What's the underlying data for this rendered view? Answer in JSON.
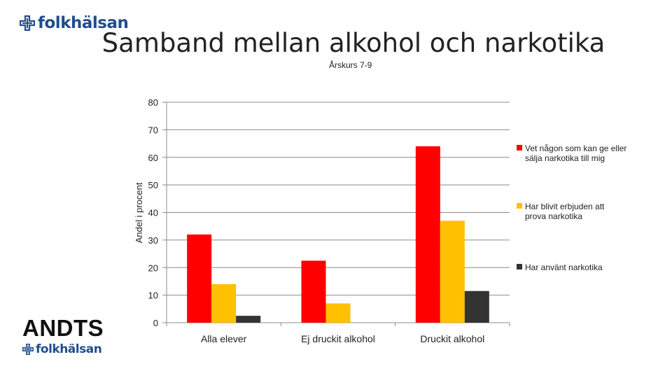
{
  "header": {
    "logo_text": "folkhälsan",
    "logo_icon": "folkhalsan-cross-icon"
  },
  "footer": {
    "andts_text": "ANDTS",
    "logo_text": "folkhälsan"
  },
  "brand_color": "#1f4e8c",
  "chart_data": {
    "type": "bar",
    "title": "Samband mellan alkohol och narkotika",
    "subtitle": "Årskurs 7-9",
    "ylabel": "Andel i procent",
    "xlabel": "",
    "ylim": [
      0,
      80
    ],
    "yticks": [
      0,
      10,
      20,
      30,
      40,
      50,
      60,
      70,
      80
    ],
    "grid": true,
    "legend_position": "right",
    "categories": [
      "Alla elever",
      "Ej druckit alkohol",
      "Druckit alkohol"
    ],
    "series": [
      {
        "name": "Vet någon som kan ge eller sälja narkotika till mig",
        "color": "#ff0000",
        "values": [
          32,
          22.5,
          64
        ]
      },
      {
        "name": "Har blivit erbjuden att prova narkotika",
        "color": "#ffc000",
        "values": [
          14,
          7,
          37
        ]
      },
      {
        "name": "Har använt narkotika",
        "color": "#333333",
        "values": [
          2.5,
          0,
          11.5
        ]
      }
    ]
  }
}
